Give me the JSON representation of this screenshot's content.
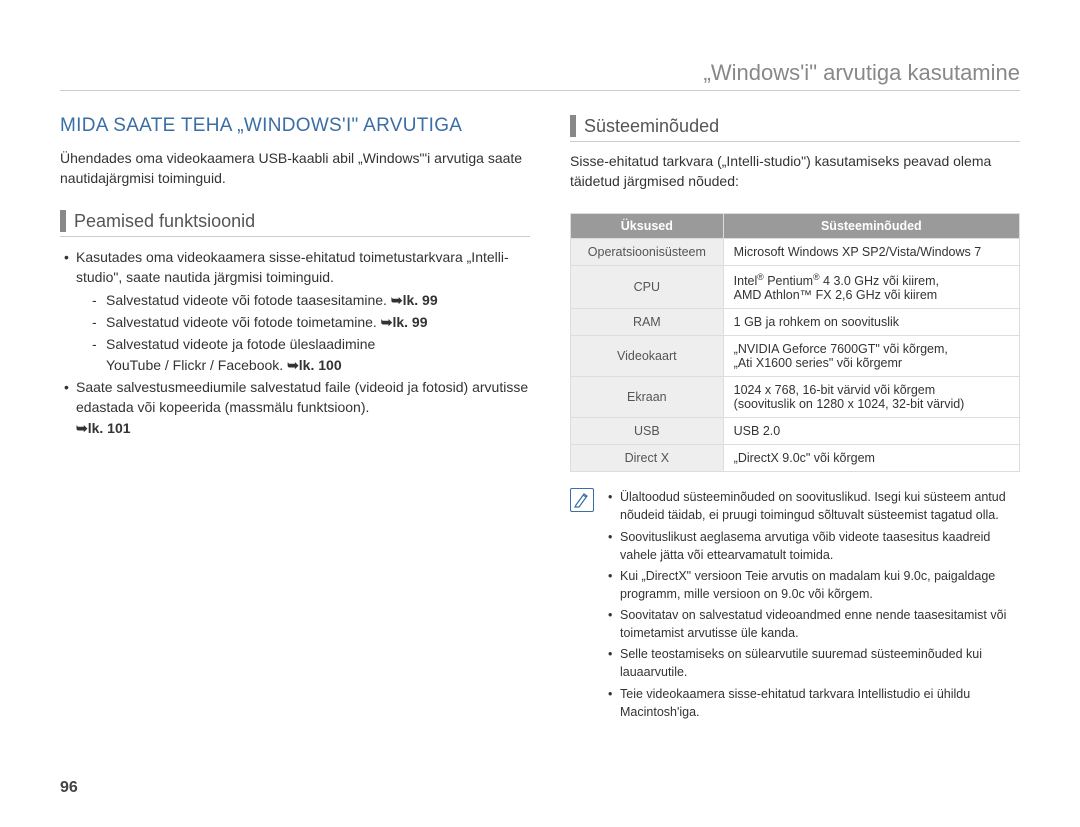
{
  "page": {
    "header": "„Windows'i\" arvutiga kasutamine",
    "number": "96"
  },
  "left": {
    "title": "MIDA SAATE TEHA „WINDOWS'I\" ARVUTIGA",
    "intro": "Ühendades oma videokaamera USB-kaabli abil „Windows\"'i arvutiga saate nautidajärgmisi toiminguid.",
    "section": "Peamised funktsioonid",
    "b1": "Kasutades oma videokaamera sisse-ehitatud toimetustarkvara „Intelli-studio\", saate nautida järgmisi toiminguid.",
    "b1s1": "Salvestatud videote või fotode taasesitamine. ",
    "b1s1ref": "➥lk. 99",
    "b1s2": "Salvestatud videote või fotode toimetamine. ",
    "b1s2ref": "➥lk. 99",
    "b1s3a": "Salvestatud videote ja fotode üleslaadimine",
    "b1s3b": "YouTube / Flickr / Facebook. ",
    "b1s3ref": "➥lk. 100",
    "b2a": "Saate salvestusmeediumile salvestatud faile (videoid ja fotosid) arvutisse edastada või kopeerida (massmälu funktsioon).",
    "b2ref": "➥lk. 101"
  },
  "right": {
    "section": "Süsteeminõuded",
    "intro": "Sisse-ehitatud tarkvara („Intelli-studio\") kasutamiseks peavad olema täidetud järgmised nõuded:",
    "table": {
      "h1": "Üksused",
      "h2": "Süsteeminõuded",
      "rows": [
        {
          "k": "Operatsioonisüsteem",
          "v": "Microsoft Windows XP SP2/Vista/Windows 7"
        },
        {
          "k": "CPU",
          "v": "Intel® Pentium® 4 3.0 GHz või kiirem,\nAMD Athlon™ FX 2,6 GHz või kiirem"
        },
        {
          "k": "RAM",
          "v": "1 GB ja rohkem on soovituslik"
        },
        {
          "k": "Videokaart",
          "v": "„NVIDIA Geforce 7600GT\" või kõrgem,\n„Ati X1600 series\" või kõrgemr"
        },
        {
          "k": "Ekraan",
          "v": "1024 x 768, 16-bit värvid või kõrgem\n(soovituslik on 1280 x 1024, 32-bit värvid)"
        },
        {
          "k": "USB",
          "v": "USB 2.0"
        },
        {
          "k": "Direct X",
          "v": "„DirectX 9.0c\" või kõrgem"
        }
      ]
    },
    "notes": [
      "Ülaltoodud süsteeminõuded on soovituslikud. Isegi kui süsteem antud nõudeid täidab, ei pruugi toimingud sõltuvalt süsteemist tagatud olla.",
      "Soovituslikust aeglasema arvutiga võib videote taasesitus kaadreid vahele jätta või ettearvamatult toimida.",
      "Kui „DirectX\" versioon Teie arvutis on madalam kui 9.0c, paigaldage programm, mille versioon on 9.0c või kõrgem.",
      "Soovitatav on salvestatud videoandmed enne nende taasesitamist või toimetamist arvutisse üle kanda.",
      "Selle teostamiseks on sülearvutile suuremad süsteeminõuded kui lauaarvutile.",
      "Teie videokaamera sisse-ehitatud tarkvara Intellistudio ei ühildu Macintosh'iga."
    ]
  }
}
